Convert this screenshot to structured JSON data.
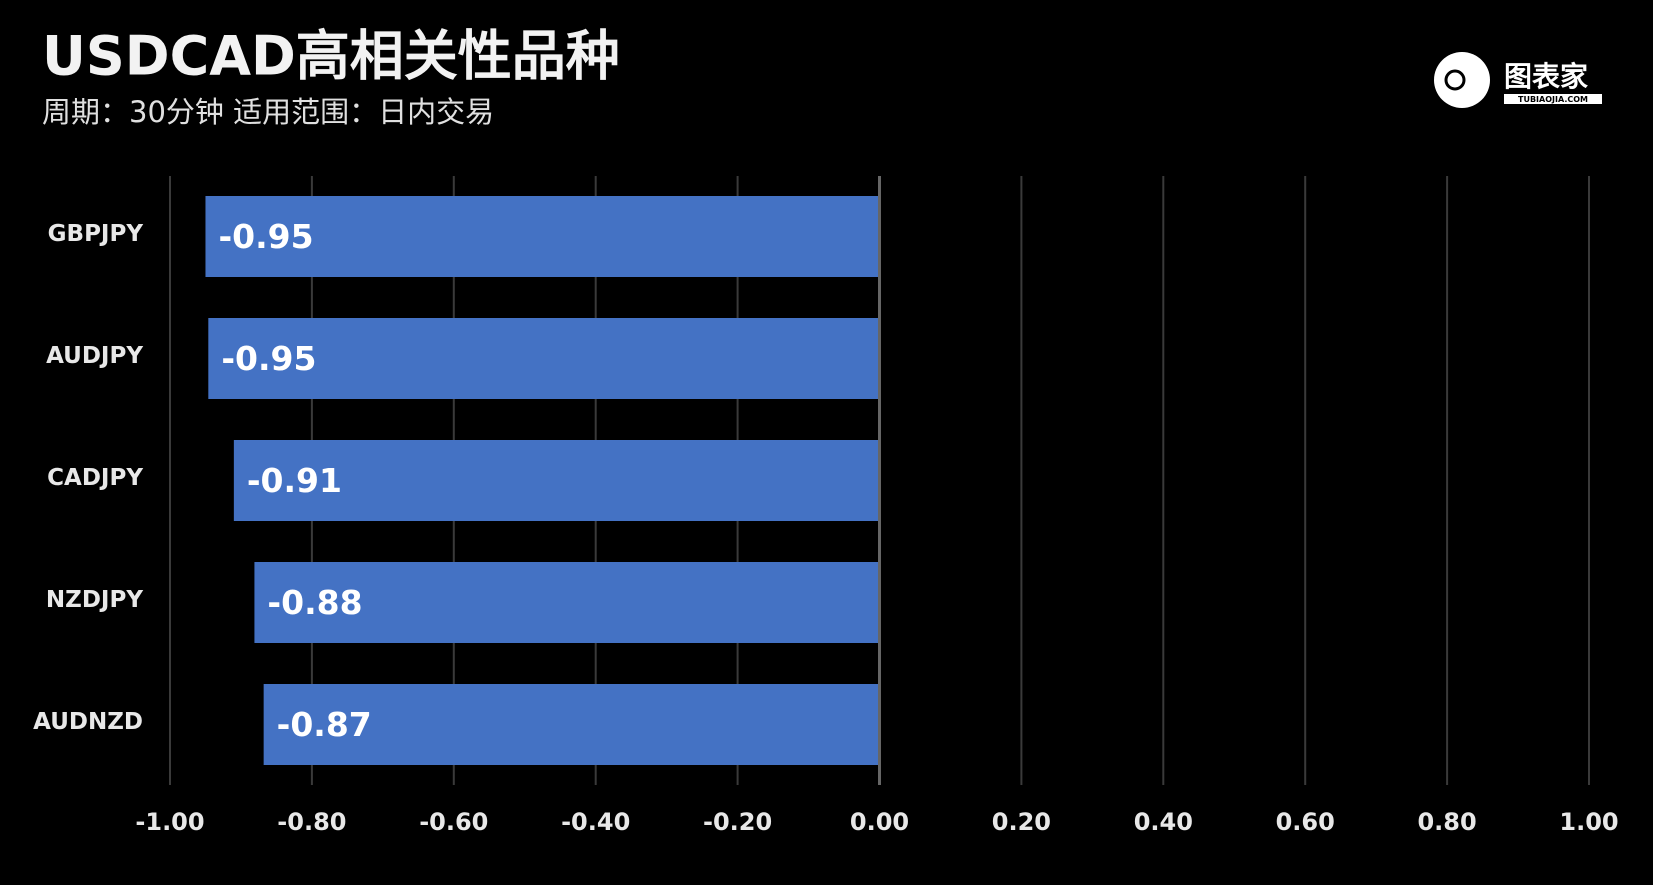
{
  "chart_data": {
    "type": "barh",
    "title": "USDCAD高相关性品种",
    "subtitle": "周期：30分钟  适用范围：日内交易",
    "categories": [
      "GBPJPY",
      "AUDJPY",
      "CADJPY",
      "NZDJPY",
      "AUDNZD"
    ],
    "values": [
      -0.95,
      -0.946,
      -0.91,
      -0.881,
      -0.868
    ],
    "value_labels": [
      "-0.95",
      "-0.95",
      "-0.91",
      "-0.88",
      "-0.87"
    ],
    "color": "#4472c4",
    "xlim": [
      -1,
      1
    ],
    "xticks": [
      {
        "value": -1,
        "label": "-1.00"
      },
      {
        "value": -0.8,
        "label": "-0.80"
      },
      {
        "value": -0.6,
        "label": "-0.60"
      },
      {
        "value": -0.4,
        "label": "-0.40"
      },
      {
        "value": -0.2,
        "label": "-0.20"
      },
      {
        "value": 0,
        "label": "0.00"
      },
      {
        "value": 0.2,
        "label": "0.20"
      },
      {
        "value": 0.4,
        "label": "0.40"
      },
      {
        "value": 0.6,
        "label": "0.60"
      },
      {
        "value": 0.8,
        "label": "0.80"
      },
      {
        "value": 1,
        "label": "1.00"
      }
    ],
    "grid": true
  },
  "logo": {
    "text": "图表家",
    "subtext": "TUBIAOJIA.COM"
  }
}
